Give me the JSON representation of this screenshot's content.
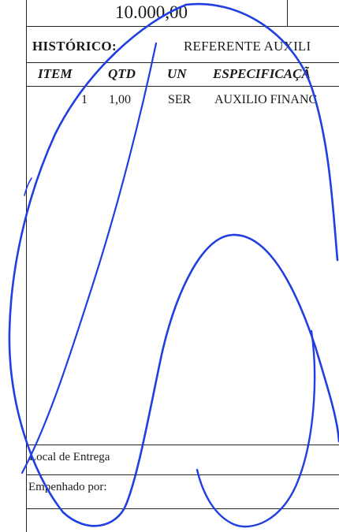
{
  "document": {
    "amount": "10.000,00",
    "historico": {
      "label": "HISTÓRICO:",
      "value": "REFERENTE AUXILI"
    },
    "table": {
      "headers": [
        "ITEM",
        "QTD",
        "UN",
        "ESPECIFICAÇÃ"
      ],
      "rows": [
        {
          "item": "1",
          "qtd": "1,00",
          "un": "SER",
          "especificacao": "AUXILIO FINANC"
        }
      ]
    },
    "local_entrega_label": "Local de Entrega",
    "empenhado_por_label": "Empenhado por:"
  },
  "colors": {
    "ink": "#1a1a1a",
    "pen": "#1f3fe0"
  }
}
